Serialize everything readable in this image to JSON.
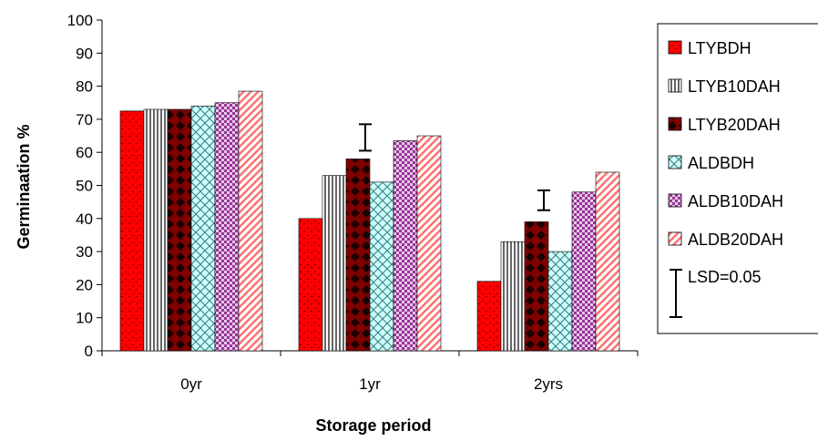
{
  "chart_data": {
    "type": "bar",
    "title": "",
    "xlabel": "Storage period",
    "ylabel": "Germinaation %",
    "ylim": [
      0,
      100
    ],
    "yticks": [
      0,
      10,
      20,
      30,
      40,
      50,
      60,
      70,
      80,
      90,
      100
    ],
    "categories": [
      "0yr",
      "1yr",
      "2yrs"
    ],
    "grid": false,
    "legend_position": "right",
    "series": [
      {
        "name": "LTYBDH",
        "values": [
          72.5,
          40,
          21
        ],
        "color": "#ff0000",
        "pattern": "dots"
      },
      {
        "name": "LTYB10DAH",
        "values": [
          73,
          53,
          33
        ],
        "color": "#ffffff",
        "pattern": "vertical-lines"
      },
      {
        "name": "LTYB20DAH",
        "values": [
          73,
          58,
          39
        ],
        "color": "#800000",
        "pattern": "diamonds"
      },
      {
        "name": "ALDBDH",
        "values": [
          74,
          51,
          30
        ],
        "color": "#ccffff",
        "pattern": "crosshatch"
      },
      {
        "name": "ALDB10DAH",
        "values": [
          75,
          63.5,
          48
        ],
        "color": "#993399",
        "pattern": "checker"
      },
      {
        "name": "ALDB20DAH",
        "values": [
          78.5,
          65,
          54
        ],
        "color": "#ff9999",
        "pattern": "diagonal"
      }
    ],
    "error_bars": [
      {
        "category": "1yr",
        "low": 60.5,
        "high": 68.5
      },
      {
        "category": "2yrs",
        "low": 42.5,
        "high": 48.5
      }
    ],
    "lsd_legend_label": "LSD=0.05"
  }
}
